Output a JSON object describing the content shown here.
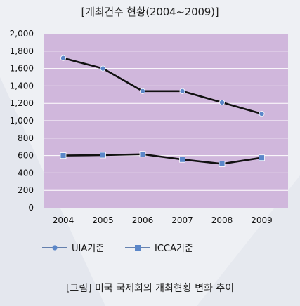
{
  "title": "[개최건수 현황(2004~2009)]",
  "caption": "[그림] 미국 국제회의 개최현황 변화 추이",
  "colors": {
    "plot_bg": "#d0b7dc",
    "grid": "#ffffff",
    "line": "#111111",
    "uia_marker": "#5b87c9",
    "icca_marker": "#5b87c9"
  },
  "chart_data": {
    "type": "line",
    "categories": [
      "2004",
      "2005",
      "2006",
      "2007",
      "2008",
      "2009"
    ],
    "ylim": [
      0,
      2000
    ],
    "yticks": [
      "0",
      "200",
      "400",
      "600",
      "800",
      "1,000",
      "1,200",
      "1,400",
      "1,600",
      "1,800",
      "2,000"
    ],
    "grid": true,
    "legend": "bottom-left",
    "series": [
      {
        "name": "UIA기준",
        "marker": "circle",
        "values": [
          1720,
          1600,
          1340,
          1340,
          1210,
          1080
        ]
      },
      {
        "name": "ICCA기준",
        "marker": "square",
        "values": [
          600,
          605,
          615,
          555,
          505,
          575
        ]
      }
    ]
  }
}
